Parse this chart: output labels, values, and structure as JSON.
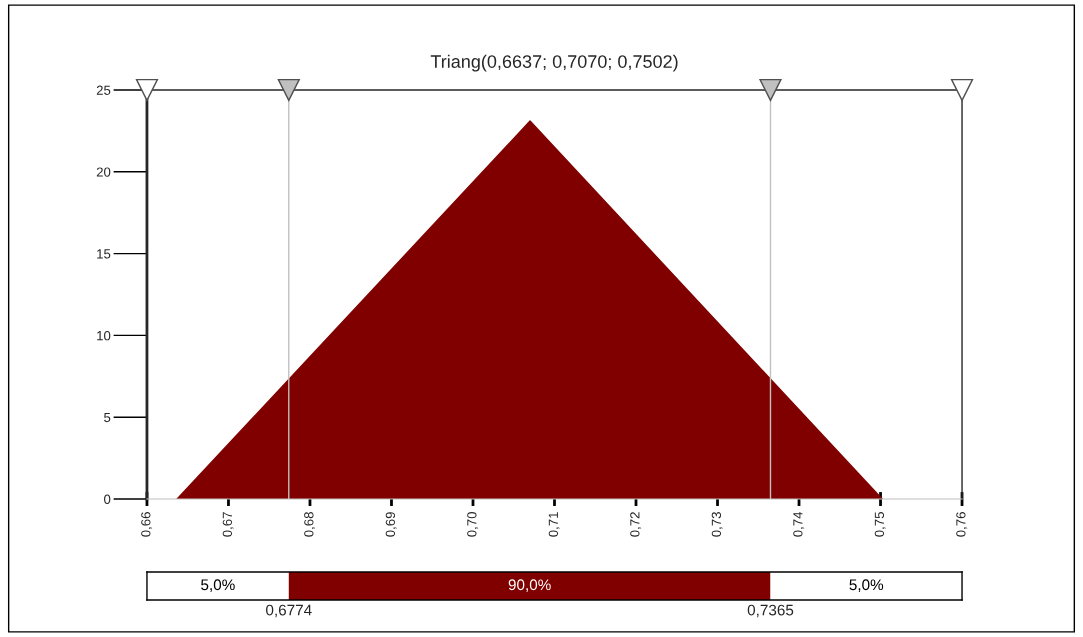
{
  "chart_data": [
    {
      "type": "area",
      "title": "Triang(0,6637; 0,7070; 0,7502)",
      "x": [
        0.6637,
        0.707,
        0.7502
      ],
      "series": [
        {
          "color": "#800000",
          "values": [
            0,
            23.1,
            0
          ]
        }
      ],
      "xlim": [
        0.66,
        0.76
      ],
      "xticks": [
        {
          "value": 0.66,
          "label": "0,66"
        },
        {
          "value": 0.67,
          "label": "0,67"
        },
        {
          "value": 0.68,
          "label": "0,68"
        },
        {
          "value": 0.69,
          "label": "0,69"
        },
        {
          "value": 0.7,
          "label": "0,70"
        },
        {
          "value": 0.71,
          "label": "0,71"
        },
        {
          "value": 0.72,
          "label": "0,72"
        },
        {
          "value": 0.73,
          "label": "0,73"
        },
        {
          "value": 0.74,
          "label": "0,74"
        },
        {
          "value": 0.75,
          "label": "0,75"
        },
        {
          "value": 0.76,
          "label": "0,76"
        }
      ],
      "ylim": [
        0,
        25
      ],
      "yticks": [
        0,
        5,
        10,
        15,
        20,
        25
      ],
      "ref_lines": [
        {
          "axis": "x",
          "value": 0.6774,
          "color": "#c0c0c0"
        },
        {
          "axis": "x",
          "value": 0.7365,
          "color": "#c0c0c0"
        }
      ],
      "grid": false
    },
    {
      "type": "other",
      "colors": [
        "#ffffff",
        "#800000",
        "#ffffff"
      ],
      "annotations": [
        "5,0%",
        "90,0%",
        "5,0%",
        "0,6774",
        "0,7365"
      ]
    }
  ]
}
